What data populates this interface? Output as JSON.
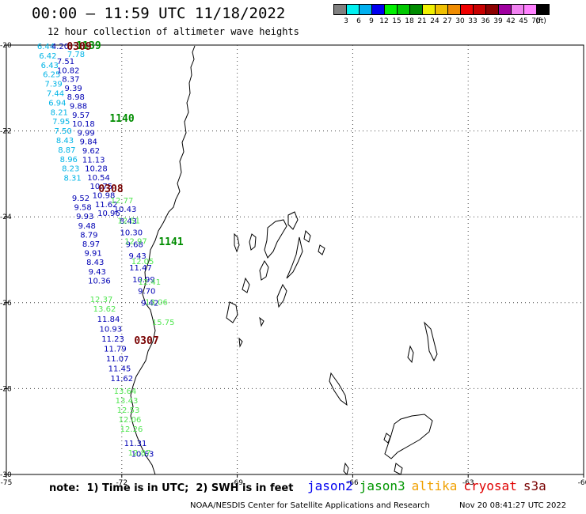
{
  "header": {
    "title": "00:00 – 11:59 UTC 11/18/2022",
    "subtitle": "12 hour collection of altimeter wave heights"
  },
  "colorbar": {
    "colors": [
      "#808080",
      "#00f0f0",
      "#00b0f0",
      "#0000f0",
      "#00f000",
      "#00c800",
      "#008c00",
      "#f0f000",
      "#f0c000",
      "#f08c00",
      "#f00000",
      "#c80000",
      "#8c0000",
      "#a000a0",
      "#f080f0",
      "#ff80ff",
      "#000000"
    ],
    "ticks": [
      "3",
      "6",
      "9",
      "12",
      "15",
      "18",
      "21",
      "24",
      "27",
      "30",
      "33",
      "36",
      "39",
      "42",
      "45",
      "70",
      "(ft)"
    ]
  },
  "axes": {
    "x_ticks": [
      "-75",
      "-72",
      "-69",
      "-66",
      "-63",
      "-60"
    ],
    "y_ticks": [
      "-20",
      "-22",
      "-24",
      "-26",
      "-28",
      "-30"
    ]
  },
  "colors": {
    "cyan": "#00b4e6",
    "blue": "#0000b4",
    "lightgreen": "#50e650",
    "darkgreen": "#008c00",
    "darkred": "#780000"
  },
  "passes": [
    {
      "label": "1139",
      "color": "#008c00"
    },
    {
      "label": "0309",
      "color": "#780000"
    },
    {
      "label": "1140",
      "color": "#008c00"
    },
    {
      "label": "0308",
      "color": "#780000"
    },
    {
      "label": "1141",
      "color": "#008c00"
    },
    {
      "label": "0307",
      "color": "#780000"
    }
  ],
  "chart_data": {
    "type": "scatter",
    "title": "00:00 – 11:59 UTC 11/18/2022",
    "subtitle": "12 hour collection of altimeter wave heights",
    "units": "ft",
    "xlim": [
      -75,
      -60
    ],
    "ylim": [
      -30,
      -20
    ],
    "cyan_track": {
      "values": [
        "6.44",
        "6.42",
        "6.43",
        "6.25",
        "7.39",
        "7.44",
        "6.94",
        "8.21",
        "7.95",
        "7.50",
        "8.43",
        "8.87",
        "8.96",
        "8.23",
        "8.31"
      ]
    },
    "blue_track_a": {
      "values": [
        "7.51",
        "10.82",
        "8.37",
        "9.39",
        "8.98",
        "9.88",
        "9.57",
        "10.18",
        "9.99",
        "9.84",
        "9.62",
        "11.13",
        "10.28",
        "10.54",
        "10.75",
        "10.98",
        "11.62",
        "10.96"
      ]
    },
    "blue_track_b": {
      "values": [
        "9.52",
        "9.58",
        "9.93",
        "9.48",
        "8.79",
        "8.97",
        "9.91",
        "8.43",
        "9.43",
        "10.36"
      ]
    },
    "blue_track_c": {
      "values": [
        "10.43",
        "8.43",
        "10.30",
        "9.68",
        "9.43",
        "11.47",
        "10.99",
        "9.70",
        "9.42"
      ]
    },
    "green_track_a": {
      "values": [
        "12.77",
        "12.51",
        "12.97",
        "12.05",
        "12.41",
        "13.06",
        "15.75"
      ]
    },
    "green_track_b": {
      "values": [
        "12.37",
        "13.62"
      ]
    },
    "blue_track_d": {
      "values": [
        "11.84",
        "10.93",
        "11.23",
        "11.79",
        "11.07",
        "11.45",
        "11.62"
      ]
    },
    "green_track_c": {
      "values": [
        "13.64",
        "13.43",
        "12.53",
        "12.06",
        "12.26"
      ]
    },
    "blue_track_e": {
      "values": [
        "11.31",
        "10.63"
      ]
    },
    "green_track_d": {
      "values": [
        "12.87"
      ]
    },
    "top_values": [
      "4.20",
      "7.78"
    ]
  },
  "note": "note:  1) Time is in UTC;  2) SWH is in feet",
  "legend": [
    {
      "label": "jason2",
      "color": "#0000f0"
    },
    {
      "label": "jason3",
      "color": "#009600"
    },
    {
      "label": "altika",
      "color": "#f0a000"
    },
    {
      "label": "cryosat",
      "color": "#e00000"
    },
    {
      "label": "s3a",
      "color": "#780000"
    }
  ],
  "footer": {
    "credit": "NOAA/NESDIS Center for Satellite Applications and Research",
    "timestamp": "Nov 20 08:41:27 UTC 2022"
  }
}
